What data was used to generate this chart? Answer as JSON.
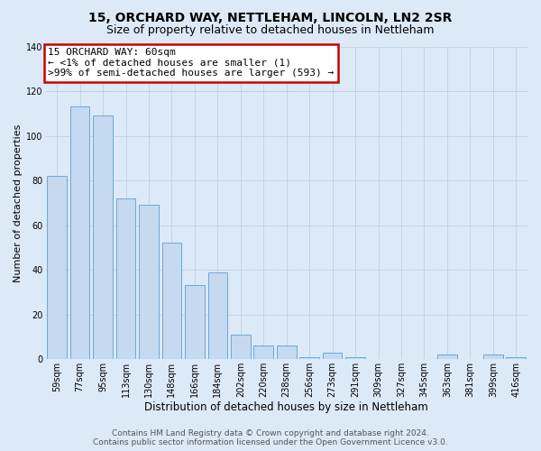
{
  "title": "15, ORCHARD WAY, NETTLEHAM, LINCOLN, LN2 2SR",
  "subtitle": "Size of property relative to detached houses in Nettleham",
  "xlabel": "Distribution of detached houses by size in Nettleham",
  "ylabel": "Number of detached properties",
  "bar_labels": [
    "59sqm",
    "77sqm",
    "95sqm",
    "113sqm",
    "130sqm",
    "148sqm",
    "166sqm",
    "184sqm",
    "202sqm",
    "220sqm",
    "238sqm",
    "256sqm",
    "273sqm",
    "291sqm",
    "309sqm",
    "327sqm",
    "345sqm",
    "363sqm",
    "381sqm",
    "399sqm",
    "416sqm"
  ],
  "bar_values": [
    82,
    113,
    109,
    72,
    69,
    52,
    33,
    39,
    11,
    6,
    6,
    1,
    3,
    1,
    0,
    0,
    0,
    2,
    0,
    2,
    1
  ],
  "bar_color": "#c5d9f0",
  "bar_edge_color": "#6aaad4",
  "annotation_text": "15 ORCHARD WAY: 60sqm\n← <1% of detached houses are smaller (1)\n>99% of semi-detached houses are larger (593) →",
  "annotation_box_color": "#ffffff",
  "annotation_box_edge_color": "#cc0000",
  "ylim": [
    0,
    140
  ],
  "yticks": [
    0,
    20,
    40,
    60,
    80,
    100,
    120,
    140
  ],
  "background_color": "#dce9f7",
  "plot_bg_color": "#dce9f7",
  "footer_line1": "Contains HM Land Registry data © Crown copyright and database right 2024.",
  "footer_line2": "Contains public sector information licensed under the Open Government Licence v3.0.",
  "title_fontsize": 10,
  "subtitle_fontsize": 9,
  "xlabel_fontsize": 8.5,
  "ylabel_fontsize": 8,
  "tick_fontsize": 7,
  "annotation_fontsize": 8,
  "footer_fontsize": 6.5
}
